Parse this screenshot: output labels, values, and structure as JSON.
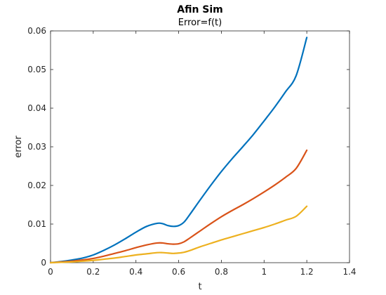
{
  "chart_data": {
    "type": "line",
    "title": "Afin Sim",
    "subtitle": "Error=f(t)",
    "xlabel": "t",
    "ylabel": "error",
    "xlim": [
      0,
      1.4
    ],
    "ylim": [
      0,
      0.06
    ],
    "xticks": [
      0,
      0.2,
      0.4,
      0.6,
      0.8,
      1,
      1.2,
      1.4
    ],
    "yticks": [
      0,
      0.01,
      0.02,
      0.03,
      0.04,
      0.05,
      0.06
    ],
    "xtick_labels": [
      "0",
      "0.2",
      "0.4",
      "0.6",
      "0.8",
      "1",
      "1.2",
      "1.4"
    ],
    "ytick_labels": [
      "0",
      "0.01",
      "0.02",
      "0.03",
      "0.04",
      "0.05",
      "0.06"
    ],
    "grid": false,
    "legend": "none",
    "series": [
      {
        "color": "#0072BD",
        "x": [
          0,
          0.05,
          0.1,
          0.15,
          0.2,
          0.25,
          0.3,
          0.35,
          0.4,
          0.45,
          0.5,
          0.525,
          0.55,
          0.575,
          0.6,
          0.625,
          0.65,
          0.7,
          0.75,
          0.8,
          0.85,
          0.9,
          0.95,
          1.0,
          1.05,
          1.1,
          1.15,
          1.2
        ],
        "y": [
          0,
          0.0003,
          0.0007,
          0.0012,
          0.002,
          0.0032,
          0.0046,
          0.0062,
          0.0079,
          0.0094,
          0.0102,
          0.0101,
          0.0096,
          0.0094,
          0.0096,
          0.0105,
          0.0123,
          0.0162,
          0.02,
          0.0236,
          0.0269,
          0.03,
          0.0332,
          0.0367,
          0.0403,
          0.0442,
          0.0484,
          0.0583
        ]
      },
      {
        "color": "#D95319",
        "x": [
          0,
          0.05,
          0.1,
          0.15,
          0.2,
          0.25,
          0.3,
          0.35,
          0.4,
          0.45,
          0.5,
          0.525,
          0.55,
          0.575,
          0.6,
          0.625,
          0.65,
          0.7,
          0.75,
          0.8,
          0.85,
          0.9,
          0.95,
          1.0,
          1.05,
          1.1,
          1.15,
          1.2
        ],
        "y": [
          0,
          0.0002,
          0.0004,
          0.0007,
          0.0011,
          0.0017,
          0.0024,
          0.0031,
          0.0039,
          0.0046,
          0.0051,
          0.0051,
          0.0049,
          0.0048,
          0.0049,
          0.0054,
          0.0063,
          0.0082,
          0.0101,
          0.0119,
          0.0135,
          0.015,
          0.0166,
          0.0183,
          0.0201,
          0.0221,
          0.0244,
          0.0291
        ]
      },
      {
        "color": "#EDB120",
        "x": [
          0,
          0.05,
          0.1,
          0.15,
          0.2,
          0.25,
          0.3,
          0.35,
          0.4,
          0.45,
          0.5,
          0.525,
          0.55,
          0.575,
          0.6,
          0.625,
          0.65,
          0.7,
          0.75,
          0.8,
          0.85,
          0.9,
          0.95,
          1.0,
          1.05,
          1.1,
          1.15,
          1.2
        ],
        "y": [
          0,
          0.0001,
          0.0002,
          0.0004,
          0.0006,
          0.0009,
          0.0012,
          0.0016,
          0.002,
          0.0023,
          0.0026,
          0.0026,
          0.0025,
          0.0024,
          0.0025,
          0.0027,
          0.0031,
          0.0041,
          0.005,
          0.0059,
          0.0067,
          0.0075,
          0.0083,
          0.0091,
          0.01,
          0.011,
          0.012,
          0.0146
        ]
      }
    ]
  }
}
